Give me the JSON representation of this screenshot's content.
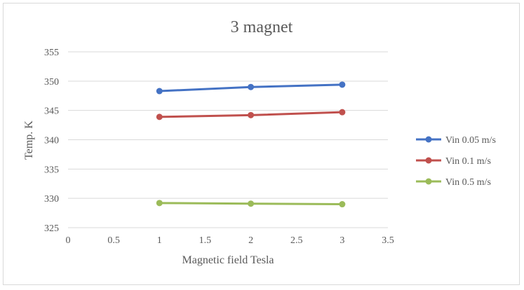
{
  "chart_data": {
    "type": "line",
    "title": "3 magnet",
    "xlabel": "Magnetic field Tesla",
    "ylabel": "Temp. K",
    "xlim": [
      0,
      3.5
    ],
    "ylim": [
      325,
      355
    ],
    "xticks": [
      0,
      0.5,
      1,
      1.5,
      2,
      2.5,
      3,
      3.5
    ],
    "yticks": [
      325,
      330,
      335,
      340,
      345,
      350,
      355
    ],
    "xtick_labels": [
      "0",
      "0.5",
      "1",
      "1.5",
      "2",
      "2.5",
      "3",
      "3.5"
    ],
    "ytick_labels": [
      "325",
      "330",
      "335",
      "340",
      "345",
      "350",
      "355"
    ],
    "grid": "horizontal",
    "legend_position": "right",
    "x": [
      1,
      2,
      3
    ],
    "series": [
      {
        "name": "Vin 0.05 m/s",
        "color": "#4472c4",
        "values": [
          348.3,
          349.0,
          349.4
        ]
      },
      {
        "name": "Vin 0.1 m/s",
        "color": "#c0504d",
        "values": [
          343.9,
          344.2,
          344.7
        ]
      },
      {
        "name": "Vin 0.5 m/s",
        "color": "#9bbb59",
        "values": [
          329.2,
          329.1,
          329.0
        ]
      }
    ]
  }
}
